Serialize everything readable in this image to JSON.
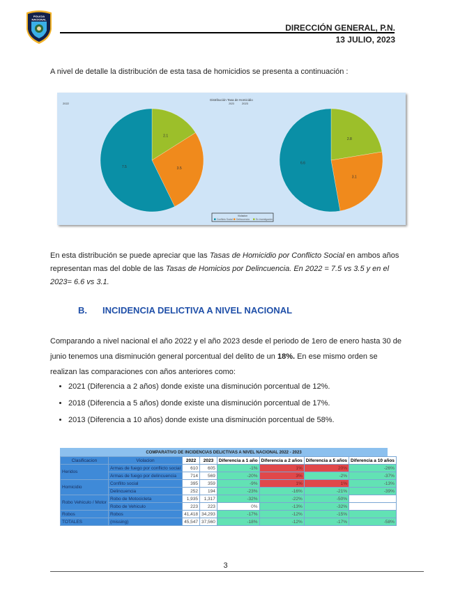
{
  "header": {
    "logo_text": "POLICIA NACIONAL",
    "org": "DIRECCIÓN GENERAL, P.N.",
    "date": "13 JULIO, 2023"
  },
  "intro": "A nivel de detalle la distribución de esta tasa de homicidios se presenta a continuación :",
  "chart_data": {
    "type": "pie",
    "title": "Distribución Tasa de Homicidio",
    "subtitle": "2023",
    "legend_title": "Violacion",
    "legend_position": "bottom",
    "categories": [
      "Conflicto Social",
      "Delincuencia",
      "En investigación"
    ],
    "colors": [
      "#0a8fa6",
      "#f08a1c",
      "#9cbf2a"
    ],
    "pies": [
      {
        "label": "2022",
        "values": [
          7.5,
          3.5,
          2.1
        ]
      },
      {
        "label": "2023",
        "values": [
          6.6,
          3.1,
          2.8
        ]
      }
    ]
  },
  "para2": {
    "a": "En esta distribución se puede apreciar que las ",
    "b": "Tasas de Homicidio por Conflicto Social",
    "c": " en ambos años representan mas del doble de las ",
    "d": "Tasas de Homicios por Delincuencia. En 2022 = 7.5 vs 3.5 y en el 2023= 6.6 vs 3.1."
  },
  "section": {
    "letter": "B.",
    "title": "INCIDENCIA DELICTIVA A NIVEL NACIONAL"
  },
  "para3": {
    "a": "Comparando a nivel nacional el año 2022 y el año 2023 desde el periodo de 1ero de enero hasta 30 de junio tenemos una disminución general porcentual del delito de un ",
    "b": "18%.",
    "c": " En ese mismo orden se realizan las comparaciones con años anteriores como:"
  },
  "bullets": [
    "2021 (Diferencia a 2 años) donde existe una disminución porcentual de 12%.",
    "2018 (Diferencia a 5 años) donde existe una disminución porcentual de 17%.",
    "2013 (Diferencia a 10 años) donde existe una disminución porcentual de 58%."
  ],
  "table": {
    "title": "COMPARATIVO DE INCIDENCIAS DELICTIVAS A NIVEL NACIONAL 2022 - 2023",
    "headers": [
      "Clasificacion",
      "Violacion",
      "2022",
      "2023",
      "Diferencia a 1 año",
      "Diferencia a 2 años",
      "Diferencia a 5 años",
      "Diferencia a 10 años"
    ],
    "rows": [
      {
        "clas": "Heridos",
        "viol": "Armas de fuego por conflicto social",
        "y2022": "610",
        "y2023": "605",
        "d": [
          "-1%",
          "1%",
          "20%",
          "-26%"
        ],
        "c": [
          "g",
          "r",
          "r",
          "g"
        ]
      },
      {
        "clas": "",
        "viol": "Armas de fuego por delincuencia",
        "y2022": "714",
        "y2023": "569",
        "d": [
          "-20%",
          "3%",
          "-2%",
          "-37%"
        ],
        "c": [
          "g",
          "r",
          "g",
          "g"
        ]
      },
      {
        "clas": "Homicidio",
        "viol": "Conflito social",
        "y2022": "395",
        "y2023": "359",
        "d": [
          "-9%",
          "1%",
          "1%",
          "-13%"
        ],
        "c": [
          "g",
          "r",
          "r",
          "g"
        ]
      },
      {
        "clas": "",
        "viol": "Delincuencia",
        "y2022": "252",
        "y2023": "194",
        "d": [
          "-23%",
          "-16%",
          "-21%",
          "-39%"
        ],
        "c": [
          "g",
          "g",
          "g",
          "g"
        ]
      },
      {
        "clas": "Robo Vehiculo / Motor",
        "viol": "Robo de Motocicleta",
        "y2022": "1,935",
        "y2023": "1,317",
        "d": [
          "-32%",
          "-22%",
          "-50%",
          ""
        ],
        "c": [
          "g",
          "g",
          "g",
          "w"
        ]
      },
      {
        "clas": "",
        "viol": "Robo de Vehiculo",
        "y2022": "223",
        "y2023": "223",
        "d": [
          "0%",
          "-13%",
          "-32%",
          ""
        ],
        "c": [
          "w",
          "g",
          "g",
          "w"
        ]
      },
      {
        "clas": "Robos",
        "viol": "Robos",
        "y2022": "41,418",
        "y2023": "34,293",
        "d": [
          "-17%",
          "-12%",
          "-15%",
          ""
        ],
        "c": [
          "g",
          "g",
          "g",
          "g"
        ]
      },
      {
        "clas": "TOTALES",
        "viol": "(missing)",
        "y2022": "45,547",
        "y2023": "37,560",
        "d": [
          "-18%",
          "-12%",
          "-17%",
          "-58%"
        ],
        "c": [
          "g",
          "g",
          "g",
          "g"
        ]
      }
    ]
  },
  "page_number": "3"
}
